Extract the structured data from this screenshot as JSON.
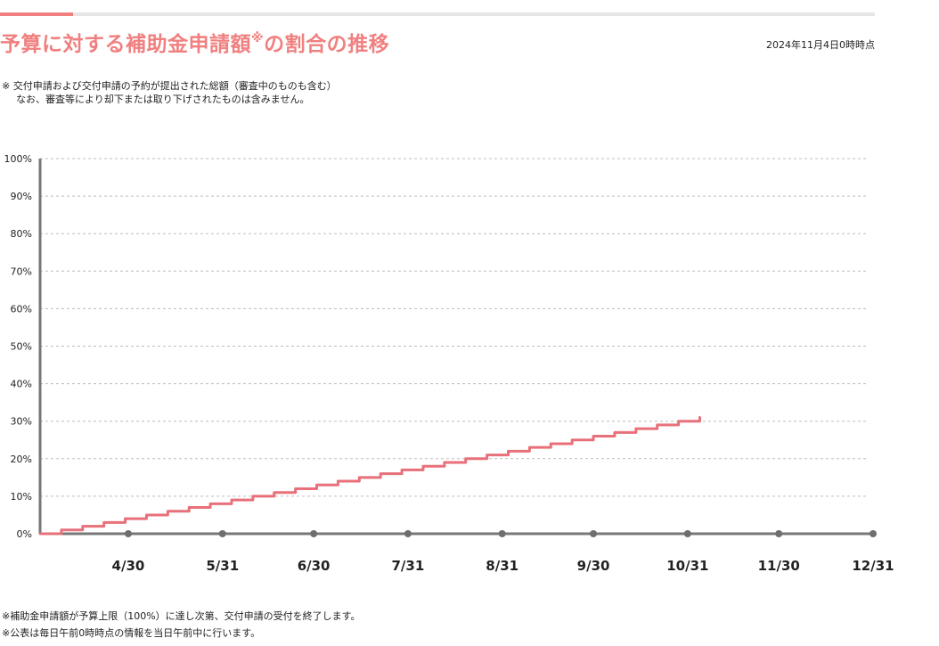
{
  "header": {
    "title_main": "予算に対する補助金申請額",
    "title_mark": "※",
    "title_tail": "の割合の推移",
    "timestamp": "2024年11月4日0時時点"
  },
  "note": {
    "line1": "※ 交付申請および交付申請の予約が提出された総額（審査中のものも含む）",
    "line2": "なお、審査等により却下または取り下げされたものは含みません。"
  },
  "footer": {
    "line1": "※補助金申請額が予算上限（100%）に達し次第、交付申請の受付を終了します。",
    "line2": "※公表は毎日午前0時時点の情報を当日午前中に行います。"
  },
  "chart_data": {
    "type": "line",
    "title": "予算に対する補助金申請額※の割合の推移",
    "xlabel": "",
    "ylabel": "",
    "y_ticks": [
      "0%",
      "10%",
      "20%",
      "30%",
      "40%",
      "50%",
      "60%",
      "70%",
      "80%",
      "90%",
      "100%"
    ],
    "ylim": [
      0,
      100
    ],
    "x_ticks": [
      "4/30",
      "5/31",
      "6/30",
      "7/31",
      "8/31",
      "9/30",
      "10/31",
      "11/30",
      "12/31"
    ],
    "xlim": [
      "4/1",
      "12/31"
    ],
    "grid": true,
    "line_color": "#e8707a",
    "axis_color": "#777777",
    "series": [
      {
        "name": "",
        "step": true,
        "x": [
          "4/1",
          "4/8",
          "4/15",
          "4/22",
          "4/29",
          "5/6",
          "5/13",
          "5/20",
          "5/27",
          "6/3",
          "6/10",
          "6/17",
          "6/24",
          "7/1",
          "7/8",
          "7/15",
          "7/22",
          "7/29",
          "8/5",
          "8/12",
          "8/19",
          "8/26",
          "9/2",
          "9/9",
          "9/16",
          "9/23",
          "9/30",
          "10/7",
          "10/14",
          "10/21",
          "10/28",
          "11/4"
        ],
        "values": [
          0,
          1,
          2,
          3,
          4,
          5,
          6,
          7,
          8,
          9,
          10,
          11,
          12,
          13,
          14,
          15,
          16,
          17,
          18,
          19,
          20,
          21,
          22,
          23,
          24,
          25,
          26,
          27,
          28,
          29,
          30,
          31
        ]
      }
    ]
  }
}
